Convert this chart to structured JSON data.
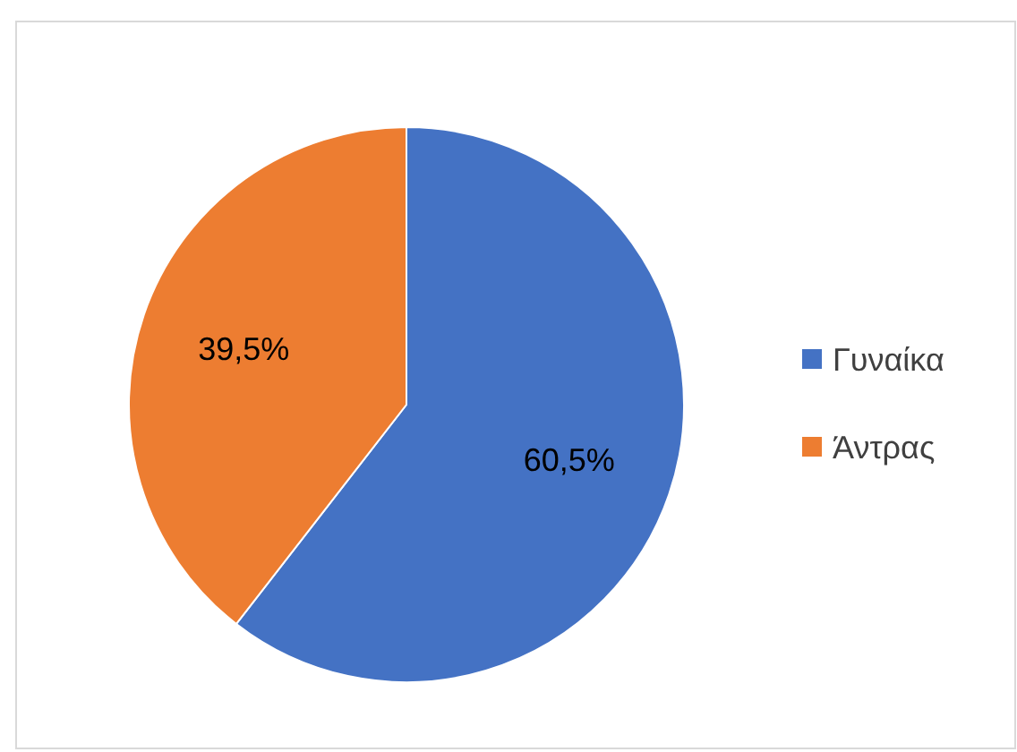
{
  "chart_data": {
    "type": "pie",
    "categories": [
      "Γυναίκα",
      "Άντρας"
    ],
    "values": [
      60.5,
      39.5
    ],
    "colors": [
      "#4472c4",
      "#ed7d31"
    ],
    "value_labels": [
      "60,5%",
      "39,5%"
    ],
    "legend": "right"
  }
}
